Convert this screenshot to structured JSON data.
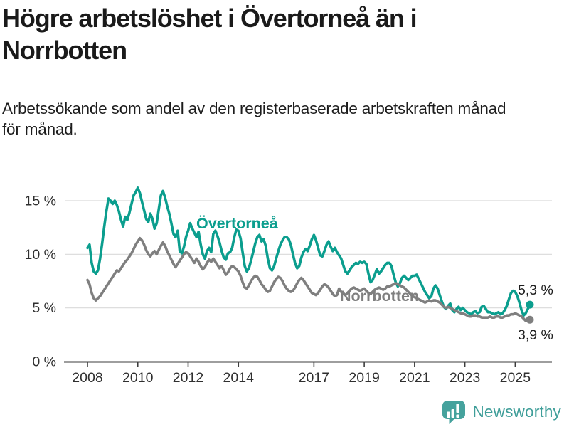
{
  "header": {
    "title_lines": [
      "Högre arbetslöshet i Övertorneå än i",
      "Norrbotten"
    ],
    "subtitle_lines": [
      "Arbetssökande som andel av den registerbaserade arbetskraften månad",
      "för månad."
    ]
  },
  "footer": {
    "brand": "Newsworthy"
  },
  "colors": {
    "overtornea": "#0b9e8e",
    "norrbotten": "#7f7f7f",
    "grid": "#d9d9d9",
    "axis": "#3d3d3d",
    "tick_text": "#2f2f2f",
    "value_label_text": "#1d1d1d",
    "logo_teal": "#45a29d"
  },
  "chart_data": {
    "type": "line",
    "title": "Högre arbetslöshet i Övertorneå än i Norrbotten",
    "subtitle": "Arbetssökande som andel av den registerbaserade arbetskraften månad för månad.",
    "frequency": "monthly",
    "x_start": "2008-01",
    "x_end": "2025-08",
    "x_ticks": [
      2008,
      2010,
      2012,
      2014,
      2017,
      2019,
      2021,
      2023,
      2025
    ],
    "y_ticks": [
      {
        "value": 0,
        "label": "0 %"
      },
      {
        "value": 5,
        "label": "5 %"
      },
      {
        "value": 10,
        "label": "10 %"
      },
      {
        "value": 15,
        "label": "15 %"
      }
    ],
    "ylim": [
      0,
      17.5
    ],
    "unit": "%",
    "grid": true,
    "legend": "inline-labels",
    "series": [
      {
        "name": "Övertorneå",
        "color": "#0b9e8e",
        "end_label": "5,3 %",
        "last_value": 5.3,
        "values": [
          10.6,
          10.9,
          9.2,
          8.4,
          8.2,
          8.5,
          9.6,
          11.0,
          12.6,
          14.0,
          15.2,
          15.0,
          14.7,
          15.0,
          14.6,
          14.0,
          13.2,
          12.6,
          13.5,
          13.2,
          13.9,
          14.7,
          15.5,
          15.8,
          16.2,
          15.7,
          14.9,
          14.1,
          13.3,
          13.0,
          13.8,
          13.3,
          12.4,
          12.9,
          14.2,
          15.5,
          15.9,
          15.3,
          14.5,
          13.8,
          12.9,
          11.9,
          11.6,
          12.2,
          10.3,
          10.1,
          10.7,
          11.6,
          12.2,
          12.9,
          12.4,
          12.0,
          11.6,
          12.1,
          10.9,
          10.0,
          9.6,
          10.3,
          10.6,
          10.2,
          11.9,
          12.2,
          11.7,
          11.1,
          10.3,
          9.7,
          9.5,
          10.1,
          10.2,
          10.6,
          11.6,
          12.3,
          12.2,
          11.5,
          10.2,
          8.9,
          8.4,
          8.7,
          9.4,
          10.2,
          11.0,
          11.6,
          11.8,
          11.2,
          11.4,
          10.8,
          9.6,
          8.7,
          8.5,
          8.9,
          9.6,
          10.3,
          10.9,
          11.3,
          11.6,
          11.6,
          11.4,
          10.9,
          10.0,
          9.2,
          8.7,
          8.9,
          9.7,
          10.2,
          10.5,
          10.3,
          10.8,
          11.4,
          11.8,
          11.3,
          10.6,
          9.9,
          9.8,
          10.3,
          10.9,
          11.2,
          10.7,
          10.3,
          10.6,
          10.2,
          9.9,
          9.6,
          9.0,
          8.4,
          8.2,
          8.5,
          8.8,
          9.0,
          9.2,
          9.1,
          9.3,
          9.2,
          9.3,
          9.1,
          8.2,
          7.4,
          7.6,
          8.1,
          8.6,
          8.2,
          8.4,
          8.7,
          9.0,
          9.2,
          9.2,
          8.9,
          8.1,
          7.4,
          7.0,
          7.3,
          7.8,
          8.0,
          7.8,
          7.6,
          7.8,
          8.0,
          8.0,
          8.1,
          7.7,
          7.3,
          6.9,
          6.5,
          6.2,
          5.9,
          6.1,
          6.8,
          7.1,
          6.8,
          6.2,
          5.6,
          5.1,
          4.9,
          5.2,
          5.4,
          4.8,
          4.6,
          4.9,
          5.1,
          4.8,
          5.0,
          4.8,
          4.6,
          4.5,
          4.4,
          4.6,
          4.7,
          4.5,
          4.6,
          5.1,
          5.2,
          4.9,
          4.6,
          4.6,
          4.5,
          4.4,
          4.5,
          4.6,
          4.4,
          4.5,
          4.8,
          5.2,
          5.8,
          6.4,
          6.6,
          6.5,
          6.1,
          5.5,
          4.8,
          4.3,
          4.5,
          4.9,
          5.3
        ]
      },
      {
        "name": "Norrbotten",
        "color": "#7f7f7f",
        "end_label": "3,9 %",
        "last_value": 3.9,
        "values": [
          7.6,
          7.2,
          6.4,
          5.9,
          5.7,
          5.9,
          6.1,
          6.4,
          6.7,
          7.0,
          7.3,
          7.6,
          7.9,
          8.2,
          8.5,
          8.4,
          8.7,
          9.0,
          9.3,
          9.5,
          9.8,
          10.1,
          10.5,
          10.9,
          11.2,
          11.5,
          11.3,
          10.9,
          10.4,
          10.0,
          9.8,
          10.1,
          10.3,
          10.0,
          10.4,
          10.8,
          11.1,
          10.8,
          10.3,
          9.9,
          9.5,
          9.1,
          8.8,
          9.1,
          9.4,
          9.7,
          10.0,
          10.2,
          10.1,
          9.8,
          9.5,
          9.2,
          9.6,
          9.3,
          8.9,
          8.6,
          8.8,
          9.2,
          9.5,
          9.3,
          9.6,
          9.3,
          9.0,
          8.7,
          8.9,
          8.5,
          8.1,
          8.3,
          8.7,
          8.9,
          8.8,
          8.6,
          8.4,
          8.0,
          7.4,
          6.9,
          6.8,
          7.1,
          7.5,
          7.8,
          8.0,
          7.9,
          7.6,
          7.2,
          7.0,
          6.7,
          6.5,
          6.6,
          7.0,
          7.4,
          7.7,
          7.9,
          7.8,
          7.5,
          7.1,
          6.8,
          6.6,
          6.5,
          6.6,
          6.9,
          7.3,
          7.6,
          7.8,
          7.6,
          7.3,
          7.0,
          6.7,
          6.4,
          6.3,
          6.2,
          6.4,
          6.7,
          7.0,
          7.2,
          7.1,
          6.9,
          6.6,
          6.3,
          6.1,
          6.2,
          6.8,
          6.5,
          6.3,
          6.2,
          6.4,
          6.6,
          6.8,
          6.9,
          6.8,
          6.7,
          6.6,
          6.7,
          6.8,
          6.6,
          6.4,
          6.3,
          6.5,
          6.7,
          6.8,
          6.9,
          6.8,
          6.7,
          6.8,
          7.0,
          7.0,
          7.1,
          7.2,
          7.3,
          7.2,
          7.1,
          7.0,
          6.9,
          6.7,
          6.5,
          6.3,
          6.1,
          6.0,
          5.9,
          5.8,
          5.7,
          5.6,
          5.5,
          5.6,
          5.7,
          5.6,
          5.7,
          5.7,
          5.6,
          5.5,
          5.3,
          5.1,
          5.0,
          5.1,
          5.0,
          4.9,
          4.8,
          4.7,
          4.6,
          4.5,
          4.5,
          4.4,
          4.3,
          4.2,
          4.2,
          4.3,
          4.3,
          4.2,
          4.2,
          4.1,
          4.1,
          4.1,
          4.1,
          4.2,
          4.1,
          4.1,
          4.2,
          4.2,
          4.1,
          4.1,
          4.2,
          4.3,
          4.3,
          4.4,
          4.4,
          4.5,
          4.4,
          4.3,
          4.2,
          4.0,
          3.8,
          3.8,
          3.9
        ]
      }
    ]
  }
}
